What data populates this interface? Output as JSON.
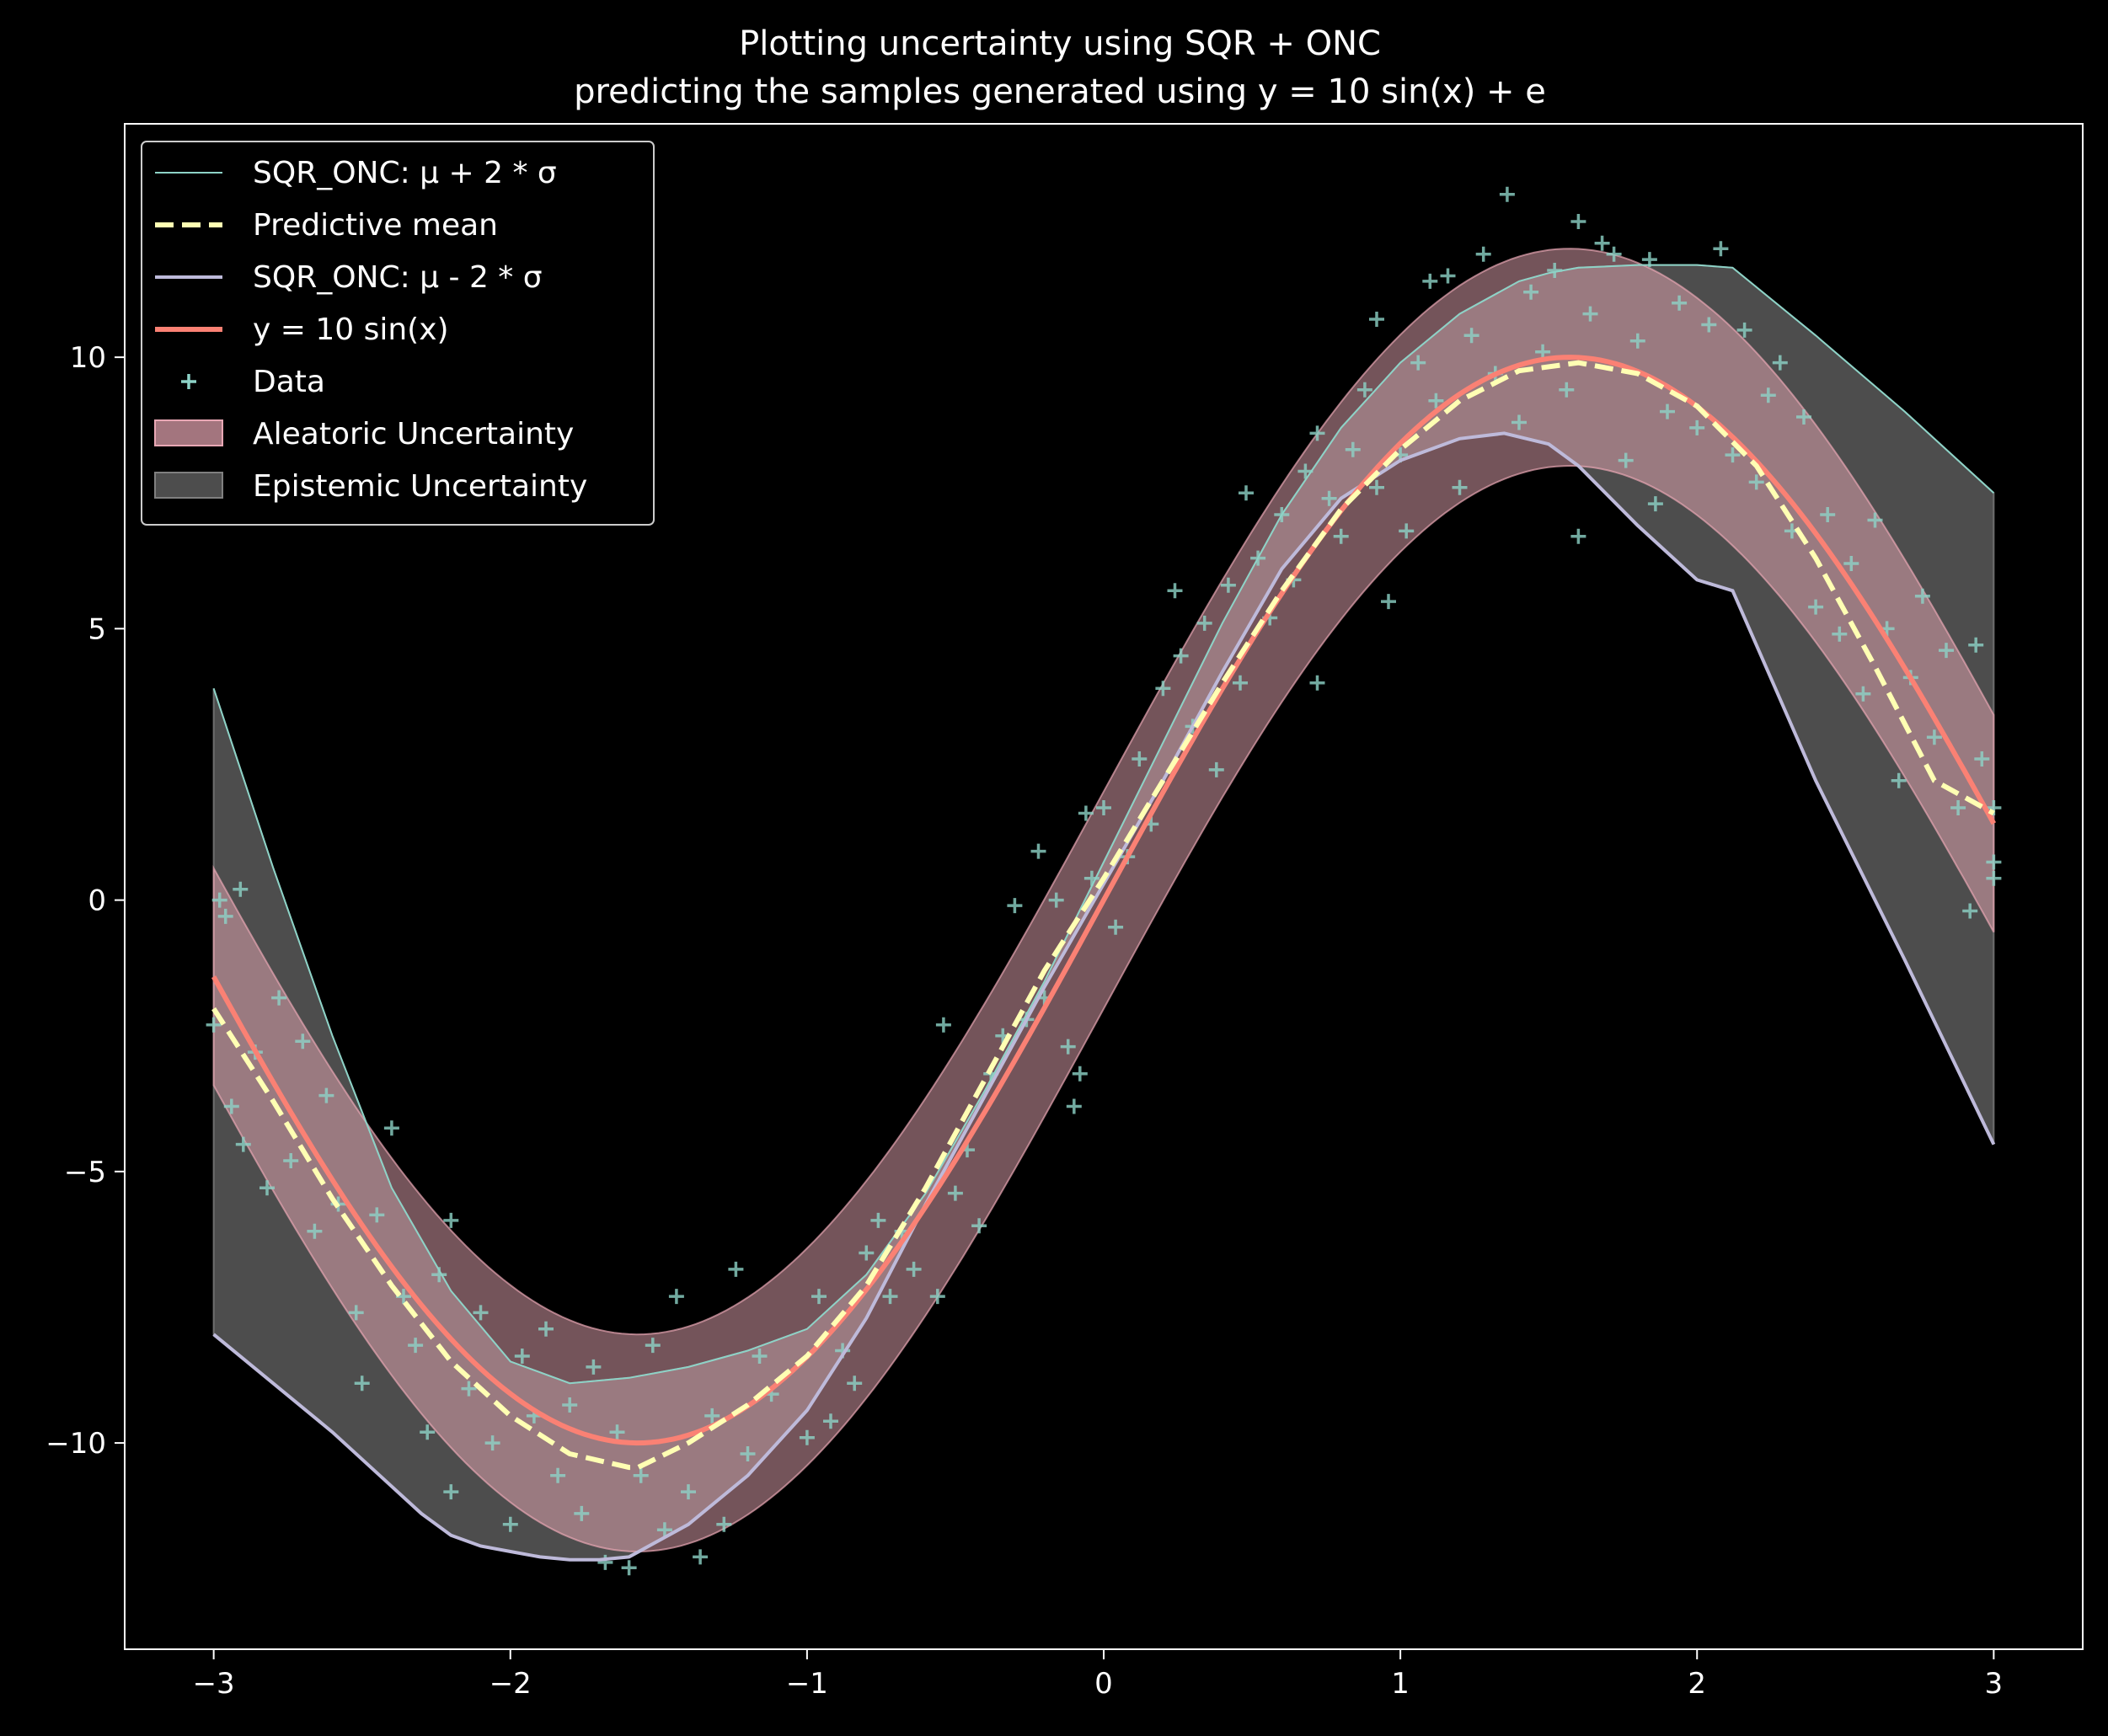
{
  "chart_data": {
    "type": "line",
    "title": "Plotting uncertainty using SQR + ONC",
    "subtitle": "predicting the samples generated using y = 10 sin(x) + e",
    "xlim": [
      -3.3,
      3.3
    ],
    "ylim": [
      -13.8,
      14.3
    ],
    "xticks": [
      -3,
      -2,
      -1,
      0,
      1,
      2,
      3
    ],
    "xtick_labels": [
      "−3",
      "−2",
      "−1",
      "0",
      "1",
      "2",
      "3"
    ],
    "yticks": [
      -10,
      -5,
      0,
      5,
      10
    ],
    "ytick_labels": [
      "−10",
      "−5",
      "0",
      "5",
      "10"
    ],
    "grid": false,
    "legend_position": "top-left",
    "colors": {
      "upper": "#8dd3c7",
      "mean": "#ffffb3",
      "lower": "#bebada",
      "true": "#fa8174",
      "data": "#8dd3c7",
      "aleatoric": "#e8a7b4",
      "epistemic": "#808080",
      "axes": "#ffffff",
      "background": "#000000"
    },
    "legend": [
      {
        "label": "SQR_ONC: μ + 2 * σ",
        "kind": "line",
        "key": "upper"
      },
      {
        "label": "Predictive mean",
        "kind": "dash",
        "key": "mean"
      },
      {
        "label": "SQR_ONC: μ - 2 * σ",
        "kind": "line",
        "key": "lower"
      },
      {
        "label": "y = 10 sin(x)",
        "kind": "line",
        "key": "true"
      },
      {
        "label": "Data",
        "kind": "marker",
        "key": "data"
      },
      {
        "label": "Aleatoric Uncertainty",
        "kind": "patch",
        "key": "aleatoric"
      },
      {
        "label": "Epistemic Uncertainty",
        "kind": "patch",
        "key": "epistemic"
      }
    ],
    "series": [
      {
        "name": "SQR_ONC: μ + 2 * σ",
        "x": [
          -3.0,
          -2.8,
          -2.6,
          -2.4,
          -2.2,
          -2.0,
          -1.8,
          -1.6,
          -1.4,
          -1.2,
          -1.0,
          -0.8,
          -0.6,
          -0.4,
          -0.2,
          0.0,
          0.2,
          0.4,
          0.6,
          0.8,
          1.0,
          1.2,
          1.4,
          1.5,
          1.6,
          1.8,
          2.0,
          2.12,
          2.4,
          2.7,
          3.0
        ],
        "y": [
          3.9,
          0.6,
          -2.5,
          -5.3,
          -7.2,
          -8.5,
          -8.9,
          -8.8,
          -8.6,
          -8.3,
          -7.9,
          -6.9,
          -5.4,
          -3.5,
          -1.5,
          0.7,
          2.9,
          5.1,
          7.1,
          8.7,
          9.9,
          10.8,
          11.4,
          11.55,
          11.65,
          11.7,
          11.7,
          11.65,
          10.4,
          9.0,
          7.5
        ]
      },
      {
        "name": "Predictive mean",
        "x": [
          -3.0,
          -2.8,
          -2.6,
          -2.4,
          -2.2,
          -2.0,
          -1.8,
          -1.6,
          -1.57,
          -1.4,
          -1.2,
          -1.0,
          -0.8,
          -0.6,
          -0.4,
          -0.2,
          0.0,
          0.2,
          0.4,
          0.6,
          0.8,
          1.0,
          1.2,
          1.4,
          1.6,
          1.8,
          2.0,
          2.2,
          2.4,
          2.6,
          2.8,
          3.0
        ],
        "y": [
          -2.0,
          -3.7,
          -5.5,
          -7.1,
          -8.5,
          -9.5,
          -10.2,
          -10.45,
          -10.45,
          -10.0,
          -9.3,
          -8.4,
          -7.1,
          -5.3,
          -3.3,
          -1.3,
          0.4,
          2.2,
          4.0,
          5.7,
          7.2,
          8.3,
          9.2,
          9.75,
          9.9,
          9.7,
          9.1,
          8.0,
          6.3,
          4.3,
          2.2,
          1.6
        ]
      },
      {
        "name": "SQR_ONC: μ - 2 * σ",
        "x": [
          -3.0,
          -2.8,
          -2.6,
          -2.4,
          -2.3,
          -2.2,
          -2.1,
          -2.0,
          -1.9,
          -1.8,
          -1.7,
          -1.6,
          -1.4,
          -1.2,
          -1.0,
          -0.8,
          -0.6,
          -0.4,
          -0.2,
          0.0,
          0.2,
          0.4,
          0.6,
          0.8,
          1.0,
          1.2,
          1.35,
          1.5,
          1.6,
          1.8,
          2.0,
          2.12,
          2.4,
          2.7,
          3.0
        ],
        "y": [
          -8.0,
          -8.9,
          -9.8,
          -10.8,
          -11.3,
          -11.7,
          -11.9,
          -12.0,
          -12.1,
          -12.15,
          -12.15,
          -12.1,
          -11.5,
          -10.6,
          -9.4,
          -7.7,
          -5.6,
          -3.6,
          -1.6,
          0.3,
          2.2,
          4.2,
          6.1,
          7.4,
          8.1,
          8.5,
          8.6,
          8.4,
          8.0,
          6.9,
          5.9,
          5.7,
          2.2,
          -1.1,
          -4.5
        ]
      },
      {
        "name": "y = 10 sin(x)",
        "function": "10*sin(x)",
        "x_range": [
          -3.0,
          3.0
        ]
      },
      {
        "name": "Aleatoric Uncertainty",
        "center": "10*sin(x)",
        "half_width": 2.0,
        "x_range": [
          -3.0,
          3.0
        ]
      },
      {
        "name": "Epistemic Uncertainty",
        "between": [
          "SQR_ONC: μ + 2 * σ",
          "SQR_ONC: μ - 2 * σ"
        ]
      },
      {
        "name": "Data",
        "points": [
          [
            -3.0,
            -2.3
          ],
          [
            -2.98,
            0.0
          ],
          [
            -2.96,
            -0.3
          ],
          [
            -2.94,
            -3.8
          ],
          [
            -2.91,
            0.2
          ],
          [
            -2.9,
            -4.5
          ],
          [
            -2.86,
            -2.8
          ],
          [
            -2.82,
            -5.3
          ],
          [
            -2.78,
            -1.8
          ],
          [
            -2.74,
            -4.8
          ],
          [
            -2.7,
            -2.6
          ],
          [
            -2.66,
            -6.1
          ],
          [
            -2.62,
            -3.6
          ],
          [
            -2.58,
            -5.6
          ],
          [
            -2.52,
            -7.6
          ],
          [
            -2.5,
            -8.9
          ],
          [
            -2.45,
            -5.8
          ],
          [
            -2.4,
            -4.2
          ],
          [
            -2.36,
            -7.3
          ],
          [
            -2.32,
            -8.2
          ],
          [
            -2.28,
            -9.8
          ],
          [
            -2.24,
            -6.9
          ],
          [
            -2.2,
            -5.9
          ],
          [
            -2.2,
            -10.9
          ],
          [
            -2.14,
            -9.0
          ],
          [
            -2.1,
            -7.6
          ],
          [
            -2.06,
            -10.0
          ],
          [
            -2.0,
            -11.5
          ],
          [
            -1.96,
            -8.4
          ],
          [
            -1.92,
            -9.5
          ],
          [
            -1.88,
            -7.9
          ],
          [
            -1.84,
            -10.6
          ],
          [
            -1.8,
            -9.3
          ],
          [
            -1.76,
            -11.3
          ],
          [
            -1.72,
            -8.6
          ],
          [
            -1.68,
            -12.2
          ],
          [
            -1.64,
            -9.8
          ],
          [
            -1.6,
            -12.3
          ],
          [
            -1.56,
            -10.6
          ],
          [
            -1.52,
            -8.2
          ],
          [
            -1.48,
            -11.6
          ],
          [
            -1.44,
            -7.3
          ],
          [
            -1.4,
            -10.9
          ],
          [
            -1.36,
            -12.1
          ],
          [
            -1.32,
            -9.5
          ],
          [
            -1.28,
            -11.5
          ],
          [
            -1.24,
            -6.8
          ],
          [
            -1.2,
            -10.2
          ],
          [
            -1.16,
            -8.4
          ],
          [
            -1.12,
            -9.1
          ],
          [
            -1.0,
            -9.9
          ],
          [
            -0.96,
            -7.3
          ],
          [
            -0.92,
            -9.6
          ],
          [
            -0.88,
            -8.3
          ],
          [
            -0.84,
            -8.9
          ],
          [
            -0.8,
            -6.5
          ],
          [
            -0.76,
            -5.9
          ],
          [
            -0.72,
            -7.3
          ],
          [
            -0.68,
            -6.1
          ],
          [
            -0.64,
            -6.8
          ],
          [
            -0.56,
            -7.3
          ],
          [
            -0.54,
            -2.3
          ],
          [
            -0.5,
            -5.4
          ],
          [
            -0.46,
            -4.6
          ],
          [
            -0.42,
            -6.0
          ],
          [
            -0.38,
            -3.2
          ],
          [
            -0.34,
            -2.5
          ],
          [
            -0.3,
            -0.1
          ],
          [
            -0.26,
            -2.2
          ],
          [
            -0.22,
            0.9
          ],
          [
            -0.2,
            -1.8
          ],
          [
            -0.16,
            0.0
          ],
          [
            -0.12,
            -2.7
          ],
          [
            -0.1,
            -3.8
          ],
          [
            -0.08,
            -3.2
          ],
          [
            -0.06,
            1.6
          ],
          [
            -0.04,
            0.4
          ],
          [
            0.0,
            1.7
          ],
          [
            0.04,
            -0.5
          ],
          [
            0.08,
            0.8
          ],
          [
            0.12,
            2.6
          ],
          [
            0.16,
            1.4
          ],
          [
            0.2,
            3.9
          ],
          [
            0.24,
            5.7
          ],
          [
            0.26,
            4.5
          ],
          [
            0.3,
            3.2
          ],
          [
            0.34,
            5.1
          ],
          [
            0.38,
            2.4
          ],
          [
            0.42,
            5.8
          ],
          [
            0.46,
            4.0
          ],
          [
            0.48,
            7.5
          ],
          [
            0.52,
            6.3
          ],
          [
            0.56,
            5.2
          ],
          [
            0.6,
            7.1
          ],
          [
            0.64,
            5.9
          ],
          [
            0.68,
            7.9
          ],
          [
            0.72,
            8.6
          ],
          [
            0.72,
            4.0
          ],
          [
            0.76,
            7.4
          ],
          [
            0.8,
            6.7
          ],
          [
            0.84,
            8.3
          ],
          [
            0.88,
            9.4
          ],
          [
            0.92,
            7.6
          ],
          [
            0.92,
            10.7
          ],
          [
            0.96,
            5.5
          ],
          [
            1.0,
            8.2
          ],
          [
            1.02,
            6.8
          ],
          [
            1.06,
            9.9
          ],
          [
            1.1,
            11.4
          ],
          [
            1.12,
            9.2
          ],
          [
            1.16,
            11.5
          ],
          [
            1.2,
            7.6
          ],
          [
            1.24,
            10.4
          ],
          [
            1.28,
            11.9
          ],
          [
            1.32,
            9.7
          ],
          [
            1.36,
            13.0
          ],
          [
            1.4,
            8.8
          ],
          [
            1.44,
            11.2
          ],
          [
            1.48,
            10.1
          ],
          [
            1.52,
            11.6
          ],
          [
            1.56,
            9.4
          ],
          [
            1.6,
            12.5
          ],
          [
            1.6,
            6.7
          ],
          [
            1.64,
            10.8
          ],
          [
            1.68,
            12.1
          ],
          [
            1.72,
            11.9
          ],
          [
            1.76,
            8.1
          ],
          [
            1.8,
            10.3
          ],
          [
            1.84,
            11.8
          ],
          [
            1.86,
            7.3
          ],
          [
            1.9,
            9.0
          ],
          [
            1.94,
            11.0
          ],
          [
            2.0,
            8.7
          ],
          [
            2.04,
            10.6
          ],
          [
            2.08,
            12.0
          ],
          [
            2.12,
            8.2
          ],
          [
            2.16,
            10.5
          ],
          [
            2.2,
            7.7
          ],
          [
            2.24,
            9.3
          ],
          [
            2.28,
            9.9
          ],
          [
            2.32,
            6.8
          ],
          [
            2.36,
            8.9
          ],
          [
            2.4,
            5.4
          ],
          [
            2.44,
            7.1
          ],
          [
            2.48,
            4.9
          ],
          [
            2.52,
            6.2
          ],
          [
            2.56,
            3.8
          ],
          [
            2.6,
            7.0
          ],
          [
            2.64,
            5.0
          ],
          [
            2.68,
            2.2
          ],
          [
            2.72,
            4.1
          ],
          [
            2.76,
            5.6
          ],
          [
            2.8,
            3.0
          ],
          [
            2.84,
            4.6
          ],
          [
            2.88,
            1.7
          ],
          [
            2.92,
            -0.2
          ],
          [
            2.94,
            4.7
          ],
          [
            2.96,
            2.6
          ],
          [
            3.0,
            0.7
          ],
          [
            3.0,
            0.4
          ],
          [
            3.0,
            1.7
          ]
        ]
      }
    ]
  }
}
